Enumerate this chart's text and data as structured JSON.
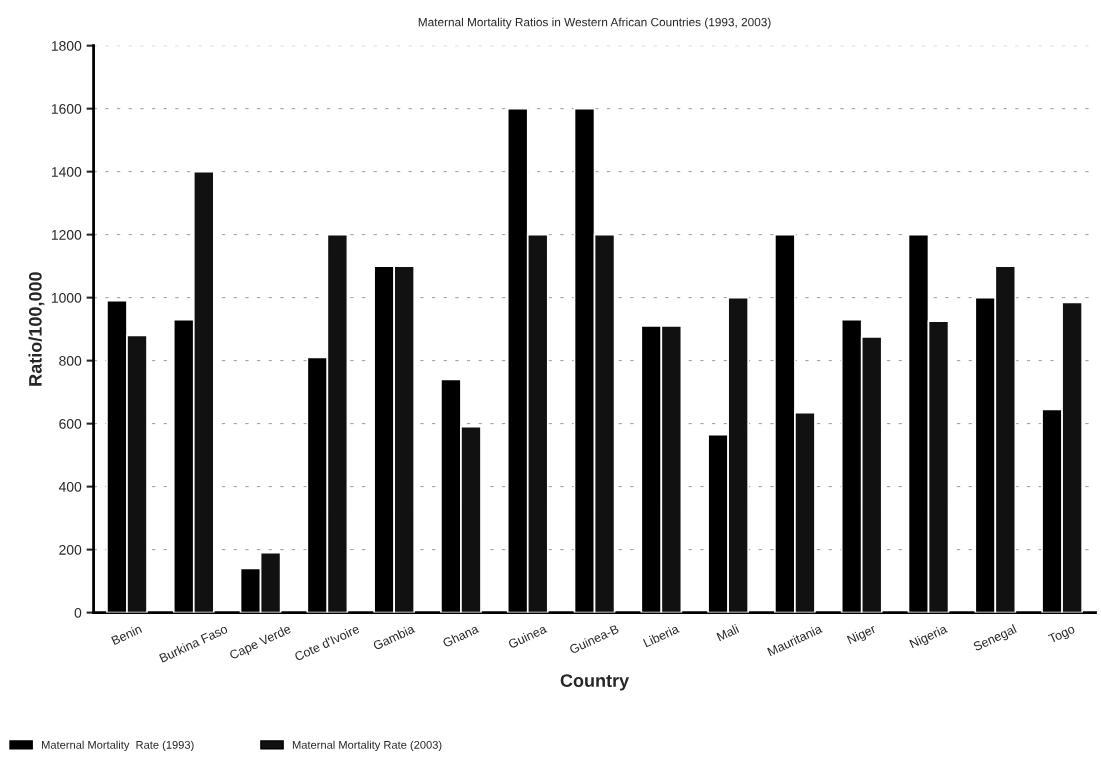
{
  "chart_data": {
    "type": "bar",
    "title": "Maternal Mortality Ratios in Western African Countries (1993, 2003)",
    "xlabel": "Country",
    "ylabel": "Ratio/100,000",
    "categories": [
      "Benin",
      "Burkina Faso",
      "Cape Verde",
      "Cote d'Ivoire",
      "Gambia",
      "Ghana",
      "Guinea",
      "Guinea-B",
      "Liberia",
      "Mali",
      "Mauritania",
      "Niger",
      "Nigeria",
      "Senegal",
      "Togo"
    ],
    "series": [
      {
        "name": "Maternal Mortality  Rate (1993)",
        "color": "#000000",
        "values": [
          990,
          930,
          140,
          810,
          1100,
          740,
          1600,
          1600,
          910,
          565,
          1200,
          930,
          1200,
          1000,
          645
        ]
      },
      {
        "name": "Maternal Mortality Rate (2003)",
        "color": "#111111",
        "values": [
          880,
          1400,
          190,
          1200,
          1100,
          590,
          1200,
          1200,
          910,
          1000,
          635,
          875,
          925,
          1100,
          985
        ]
      }
    ],
    "ylim": [
      0,
      1800
    ],
    "yticks": [
      0,
      200,
      400,
      600,
      800,
      1000,
      1200,
      1400,
      1600,
      1800
    ],
    "grid": "y",
    "legend": "bottom left"
  }
}
